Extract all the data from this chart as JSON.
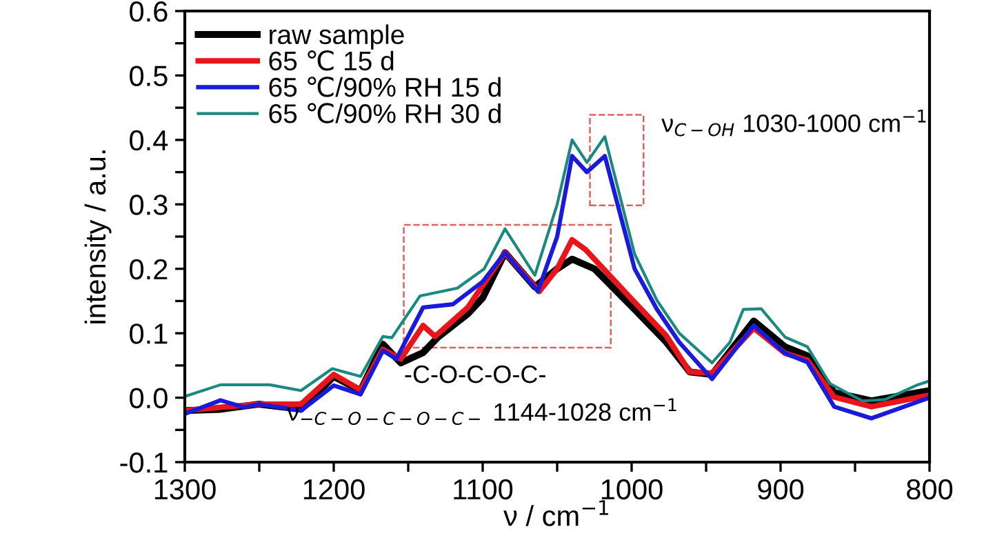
{
  "chart_data": {
    "type": "line",
    "xlabel": "ν / cm$^{−1}$",
    "ylabel": "intensity / a.u.",
    "xlim": [
      1300,
      800
    ],
    "ylim": [
      -0.1,
      0.6
    ],
    "xticks": [
      1300,
      {
        "value": 1250,
        "label": null
      },
      1200,
      {
        "value": 1150,
        "label": null
      },
      1100,
      {
        "value": 1050,
        "label": null
      },
      1000,
      {
        "value": 950,
        "label": null
      },
      900,
      {
        "value": 850,
        "label": null
      },
      800
    ],
    "yticks": [
      {
        "value": -0.1,
        "label": "-0.1"
      },
      {
        "value": -0.05,
        "label": null
      },
      {
        "value": 0.0,
        "label": "0.0"
      },
      {
        "value": 0.05,
        "label": null
      },
      0.1,
      {
        "value": 0.15,
        "label": null
      },
      0.2,
      {
        "value": 0.25,
        "label": null
      },
      0.3,
      {
        "value": 0.35,
        "label": null
      },
      0.4,
      {
        "value": 0.45,
        "label": null
      },
      0.5,
      {
        "value": 0.55,
        "label": null
      },
      0.6
    ],
    "grid": false,
    "legend": "top left",
    "marker": "none",
    "line_style": "solid",
    "series": [
      {
        "name": "raw sample",
        "color": "#000000",
        "x": [
          1300,
          1276,
          1250,
          1222,
          1200,
          1182,
          1167,
          1155,
          1140,
          1130,
          1110,
          1100,
          1085,
          1065,
          1050,
          1040,
          1025,
          998,
          977,
          961,
          946,
          918,
          897,
          882,
          864,
          839,
          800
        ],
        "values": [
          -0.02,
          -0.018,
          -0.01,
          -0.018,
          0.033,
          0.011,
          0.083,
          0.054,
          0.07,
          0.094,
          0.13,
          0.155,
          0.225,
          0.172,
          0.2,
          0.215,
          0.2,
          0.137,
          0.087,
          0.04,
          0.036,
          0.119,
          0.079,
          0.065,
          0.008,
          -0.005,
          0.011
        ]
      },
      {
        "name": "65 ℃ 15 d",
        "color": "#e8161b",
        "x": [
          1300,
          1276,
          1250,
          1222,
          1200,
          1182,
          1167,
          1155,
          1140,
          1132,
          1110,
          1085,
          1062,
          1050,
          1040,
          1031,
          998,
          977,
          961,
          946,
          918,
          897,
          882,
          864,
          839,
          800
        ],
        "values": [
          -0.02,
          -0.015,
          -0.01,
          -0.01,
          0.036,
          0.012,
          0.075,
          0.06,
          0.112,
          0.095,
          0.14,
          0.225,
          0.165,
          0.2,
          0.245,
          0.23,
          0.148,
          0.097,
          0.04,
          0.038,
          0.108,
          0.069,
          0.058,
          0.001,
          -0.014,
          0.004
        ]
      },
      {
        "name": "65 ℃/90% RH 15 d",
        "color": "#1a1adb",
        "x": [
          1300,
          1276,
          1260,
          1250,
          1222,
          1200,
          1182,
          1167,
          1158,
          1140,
          1120,
          1100,
          1085,
          1063,
          1050,
          1040,
          1030,
          1018,
          998,
          983,
          968,
          946,
          918,
          897,
          882,
          864,
          839,
          800
        ],
        "values": [
          -0.025,
          -0.004,
          -0.015,
          -0.01,
          -0.02,
          0.019,
          0.005,
          0.073,
          0.06,
          0.14,
          0.145,
          0.18,
          0.225,
          0.165,
          0.25,
          0.375,
          0.35,
          0.375,
          0.2,
          0.137,
          0.086,
          0.029,
          0.112,
          0.069,
          0.055,
          -0.014,
          -0.032,
          0.0
        ]
      },
      {
        "name": "65 ℃/90% RH 30 d",
        "color": "#1a8a80",
        "x": [
          1300,
          1276,
          1243,
          1222,
          1201,
          1182,
          1167,
          1161,
          1142,
          1117,
          1099,
          1085,
          1065,
          1050,
          1040,
          1030,
          1018,
          998,
          983,
          968,
          946,
          934,
          925,
          913,
          897,
          882,
          867,
          845,
          830,
          809,
          800
        ],
        "values": [
          0.002,
          0.02,
          0.02,
          0.011,
          0.045,
          0.033,
          0.095,
          0.093,
          0.158,
          0.17,
          0.2,
          0.262,
          0.19,
          0.3,
          0.4,
          0.365,
          0.405,
          0.223,
          0.151,
          0.1,
          0.054,
          0.086,
          0.137,
          0.138,
          0.094,
          0.079,
          0.022,
          -0.005,
          -0.003,
          0.019,
          0.026
        ]
      }
    ],
    "annotations": [
      "ν$_{C−OH}$ 1030-1000 cm$^{−1}$",
      "-C-O-C-O-C-",
      "ν$_{−C−O−C−O−C−}$ 1144-1028 cm$^{−1}$"
    ]
  }
}
